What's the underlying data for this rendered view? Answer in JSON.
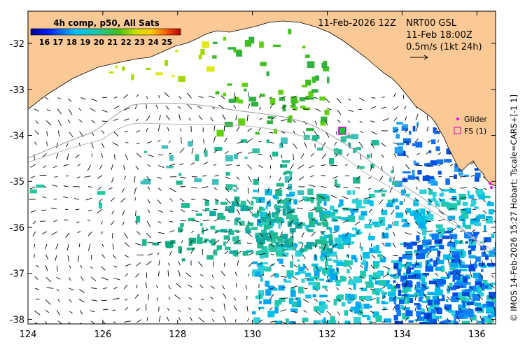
{
  "map": {
    "lon_range": [
      124,
      136.5
    ],
    "lat_range": [
      -38.1,
      -31.3
    ],
    "lon_ticks": [
      124,
      126,
      128,
      130,
      132,
      134,
      136
    ],
    "lat_ticks": [
      -32,
      -33,
      -34,
      -35,
      -36,
      -37,
      -38
    ],
    "lon_tick_labels": [
      "124",
      "126",
      "128",
      "130",
      "132",
      "134",
      "136"
    ],
    "lat_tick_labels": [
      "-32",
      "-33",
      "-34",
      "-35",
      "-36",
      "-37",
      "-38"
    ]
  },
  "colorbar": {
    "title": "4h comp, p50, All Sats",
    "tick_labels": [
      "16",
      "17",
      "18",
      "19",
      "20",
      "21",
      "22",
      "23",
      "24",
      "25"
    ],
    "value_range": [
      15,
      26
    ]
  },
  "header": {
    "date": "11-Feb-2026 12Z",
    "model": "NRT00 GSL",
    "model_time": "11-Feb 18:00Z",
    "scale_text": "0.5m/s (1kt 24h)"
  },
  "legend": {
    "glider_label": "Glider",
    "fs_label": "FS (1)"
  },
  "credit": "© IMOS 14-Feb-2026 15:27 Hobart; Tscale=CARS+[-1 1]",
  "colors": {
    "land": "#fbc995",
    "ocean": "#ffffff",
    "glider": "#ff00ff",
    "fs_marker": "#cc00cc"
  },
  "markers": [
    {
      "type": "fs",
      "lon": 132.4,
      "lat": -33.9
    }
  ]
}
